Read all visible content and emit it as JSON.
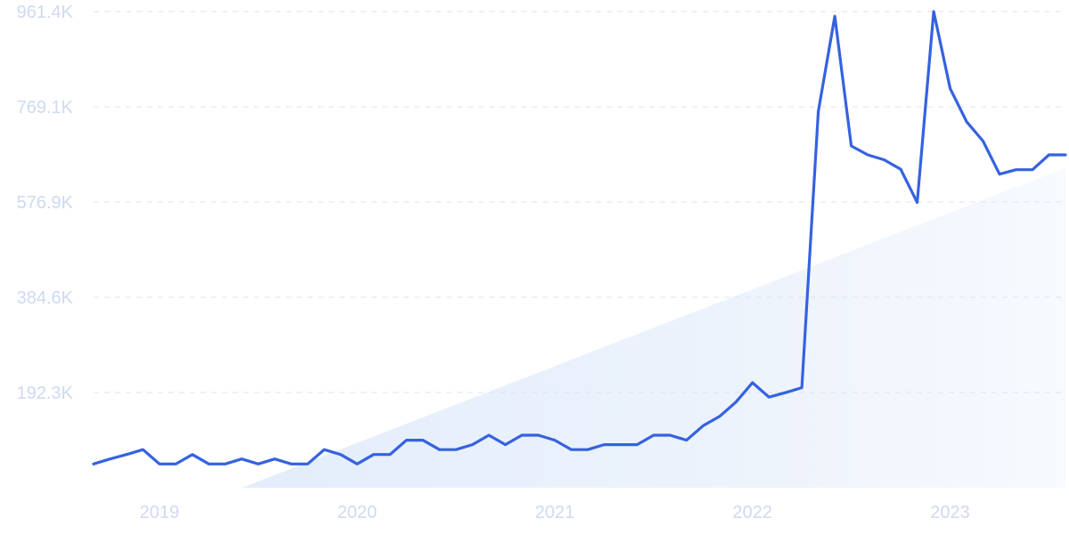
{
  "chart_data": {
    "type": "line",
    "title": "",
    "xlabel": "",
    "ylabel": "",
    "xlim": [
      "2018-09",
      "2023-08"
    ],
    "ylim": [
      0,
      961400
    ],
    "y_ticks": [
      {
        "value": 192300,
        "label": "192.3K"
      },
      {
        "value": 384600,
        "label": "384.6K"
      },
      {
        "value": 576900,
        "label": "576.9K"
      },
      {
        "value": 769100,
        "label": "769.1K"
      },
      {
        "value": 961400,
        "label": "961.4K"
      }
    ],
    "x_ticks": [
      {
        "value": "2019-01",
        "label": "2019"
      },
      {
        "value": "2020-01",
        "label": "2020"
      },
      {
        "value": "2021-01",
        "label": "2021"
      },
      {
        "value": "2022-01",
        "label": "2022"
      },
      {
        "value": "2023-01",
        "label": "2023"
      }
    ],
    "grid": "horizontal dashed",
    "legend": "none",
    "colors": {
      "line": "#3562e0",
      "trend_fill": "#e3edfb",
      "grid": "#dde3ee",
      "tick_text": "#cfd9f0"
    },
    "trend_area": {
      "start": {
        "x": "2019-06",
        "y": 0
      },
      "end": {
        "x": "2023-08",
        "y": 646000
      }
    },
    "series": [
      {
        "x": [
          "2018-09",
          "2018-10",
          "2018-11",
          "2018-12",
          "2019-01",
          "2019-02",
          "2019-03",
          "2019-04",
          "2019-05",
          "2019-06",
          "2019-07",
          "2019-08",
          "2019-09",
          "2019-10",
          "2019-11",
          "2019-12",
          "2020-01",
          "2020-02",
          "2020-03",
          "2020-04",
          "2020-05",
          "2020-06",
          "2020-07",
          "2020-08",
          "2020-09",
          "2020-10",
          "2020-11",
          "2020-12",
          "2021-01",
          "2021-02",
          "2021-03",
          "2021-04",
          "2021-05",
          "2021-06",
          "2021-07",
          "2021-08",
          "2021-09",
          "2021-10",
          "2021-11",
          "2021-12",
          "2022-01",
          "2022-02",
          "2022-03",
          "2022-04",
          "2022-05",
          "2022-06",
          "2022-07",
          "2022-08",
          "2022-09",
          "2022-10",
          "2022-11",
          "2022-12",
          "2023-01",
          "2023-02",
          "2023-03",
          "2023-04",
          "2023-05",
          "2023-06",
          "2023-07",
          "2023-08"
        ],
        "values": [
          48000,
          58000,
          67000,
          77000,
          48000,
          48000,
          67000,
          48000,
          48000,
          58000,
          48000,
          58000,
          48000,
          48000,
          77000,
          67000,
          48000,
          67000,
          67000,
          96000,
          96000,
          77000,
          77000,
          87000,
          106000,
          87000,
          106000,
          106000,
          96000,
          77000,
          77000,
          87000,
          87000,
          87000,
          106000,
          106000,
          96000,
          125000,
          144000,
          173000,
          212000,
          183000,
          192000,
          202000,
          760000,
          952000,
          690000,
          672000,
          662000,
          643000,
          576000,
          961400,
          806000,
          739000,
          700000,
          633000,
          642000,
          642000,
          672000,
          672000
        ]
      }
    ]
  }
}
